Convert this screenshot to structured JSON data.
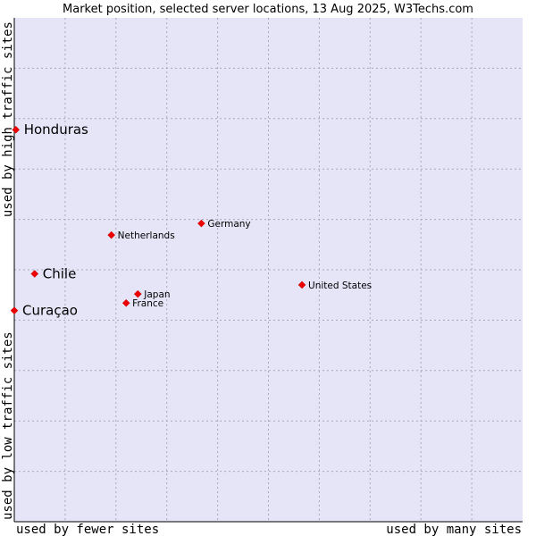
{
  "chart_data": {
    "type": "scatter",
    "title": "Market position, selected server locations, 13 Aug 2025, W3Techs.com",
    "xlabel_low": "used by fewer sites",
    "xlabel_high": "used by many sites",
    "ylabel_low": "used by low traffic sites",
    "ylabel_high": "used by high traffic sites",
    "xlim": [
      0,
      100
    ],
    "ylim": [
      0,
      100
    ],
    "grid": true,
    "colors": {
      "plot_bg": "#e5e5f7",
      "marker": "#ee0000",
      "marker_edge": "#bb0000",
      "axis": "#000000"
    },
    "points": [
      {
        "label": "Honduras",
        "x": 0.3,
        "y": 77.8,
        "emphasis": true
      },
      {
        "label": "Chile",
        "x": 4.0,
        "y": 49.2,
        "emphasis": true
      },
      {
        "label": "Curaçao",
        "x": 0.0,
        "y": 41.9,
        "emphasis": true
      },
      {
        "label": "Germany",
        "x": 36.8,
        "y": 59.2,
        "emphasis": false
      },
      {
        "label": "Netherlands",
        "x": 19.1,
        "y": 56.9,
        "emphasis": false
      },
      {
        "label": "Japan",
        "x": 24.3,
        "y": 45.2,
        "emphasis": false
      },
      {
        "label": "France",
        "x": 22.0,
        "y": 43.4,
        "emphasis": false
      },
      {
        "label": "United States",
        "x": 56.6,
        "y": 47.0,
        "emphasis": false
      }
    ]
  }
}
